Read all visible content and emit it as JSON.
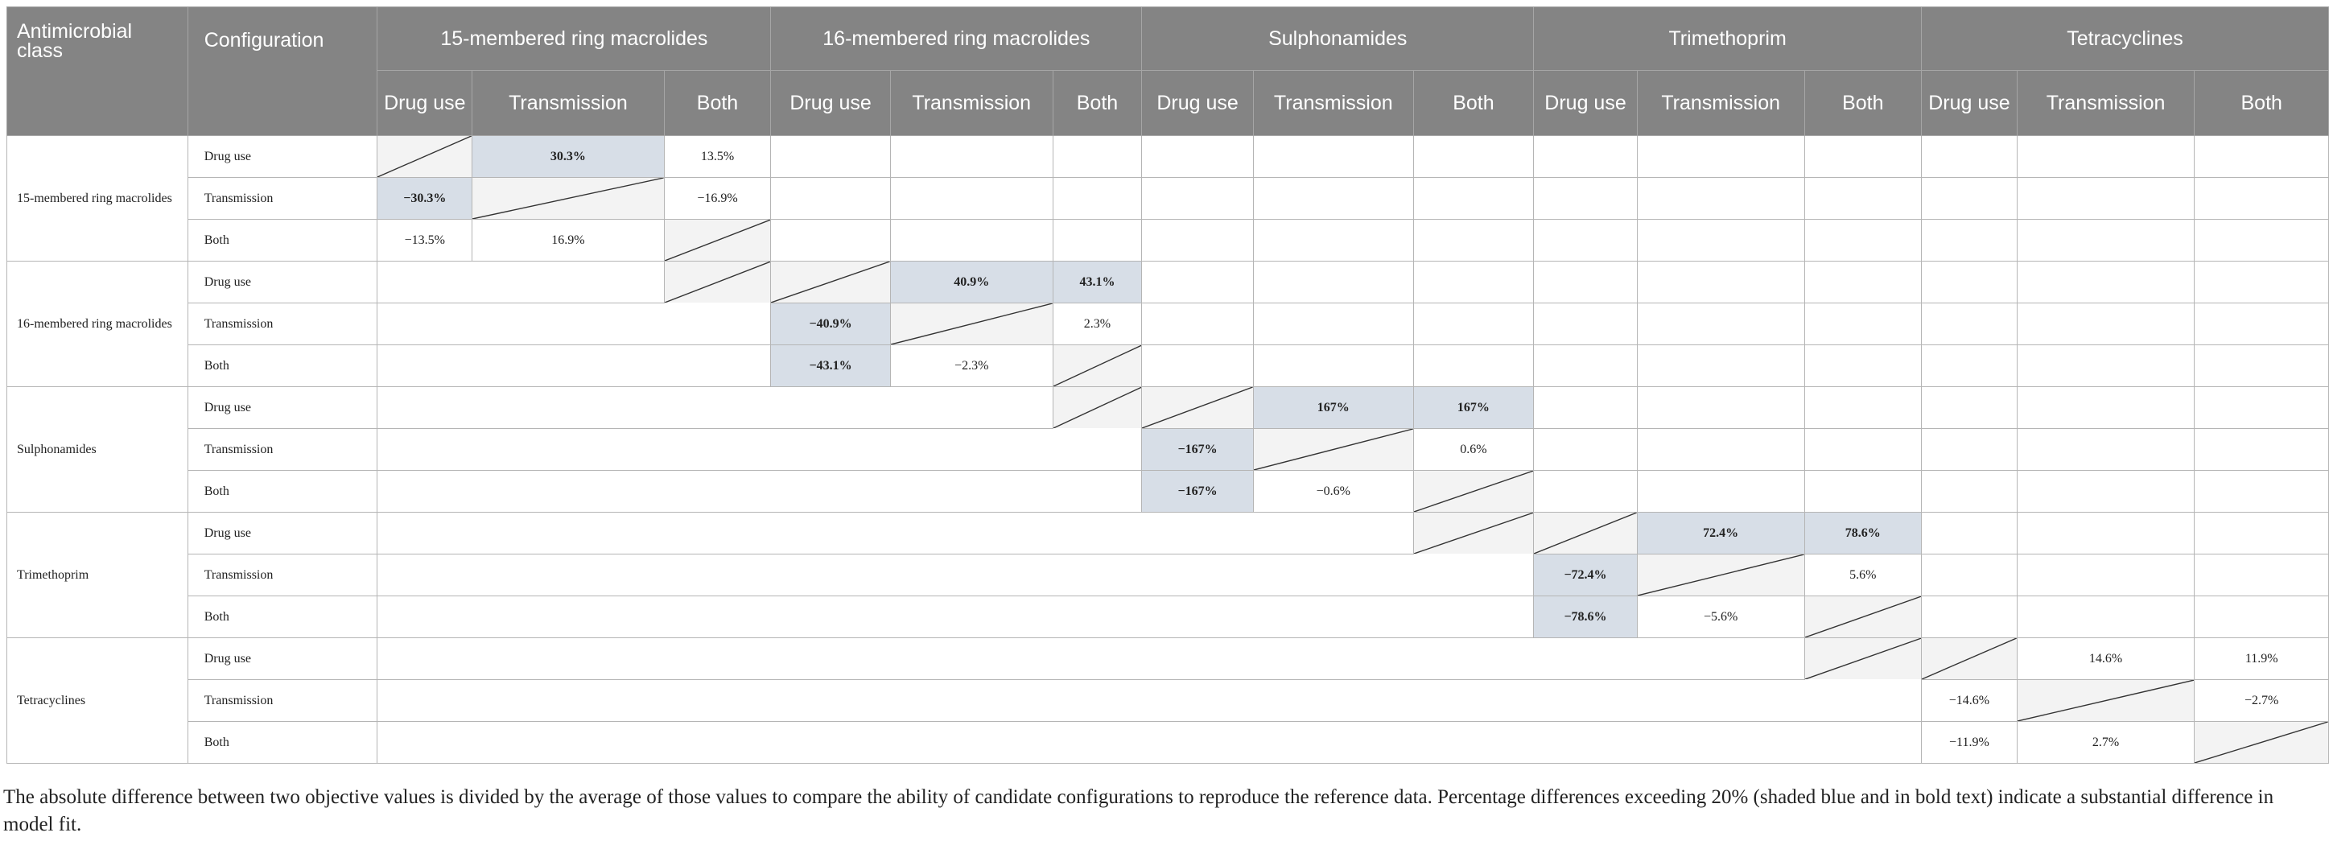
{
  "header": {
    "class_label": "Antimicrobial class",
    "config_label": "Configuration",
    "groups": [
      "15-membered ring macrolides",
      "16-membered ring macrolides",
      "Sulphonamides",
      "Trimethoprim",
      "Tetracyclines"
    ],
    "subcols": [
      "Drug use",
      "Transmission",
      "Both"
    ]
  },
  "classes": [
    "15-membered ring macrolides",
    "16-membered ring macrolides",
    "Sulphonamides",
    "Trimethoprim",
    "Tetracyclines"
  ],
  "configs": [
    "Drug use",
    "Transmission",
    "Both"
  ],
  "blocks": [
    [
      [
        "",
        "30.3%",
        "13.5%"
      ],
      [
        "−30.3%",
        "",
        "−16.9%"
      ],
      [
        "−13.5%",
        "16.9%",
        ""
      ]
    ],
    [
      [
        "",
        "40.9%",
        "43.1%"
      ],
      [
        "−40.9%",
        "",
        "2.3%"
      ],
      [
        "−43.1%",
        "−2.3%",
        ""
      ]
    ],
    [
      [
        "",
        "167%",
        "167%"
      ],
      [
        "−167%",
        "",
        "0.6%"
      ],
      [
        "−167%",
        "−0.6%",
        ""
      ]
    ],
    [
      [
        "",
        "72.4%",
        "78.6%"
      ],
      [
        "−72.4%",
        "",
        "5.6%"
      ],
      [
        "−78.6%",
        "−5.6%",
        ""
      ]
    ],
    [
      [
        "",
        "14.6%",
        "11.9%"
      ],
      [
        "−14.6%",
        "",
        "−2.7%"
      ],
      [
        "−11.9%",
        "2.7%",
        ""
      ]
    ]
  ],
  "significant": [
    [
      [
        false,
        true,
        false
      ],
      [
        true,
        false,
        false
      ],
      [
        false,
        false,
        false
      ]
    ],
    [
      [
        false,
        true,
        true
      ],
      [
        true,
        false,
        false
      ],
      [
        true,
        false,
        false
      ]
    ],
    [
      [
        false,
        true,
        true
      ],
      [
        true,
        false,
        false
      ],
      [
        true,
        false,
        false
      ]
    ],
    [
      [
        false,
        true,
        true
      ],
      [
        true,
        false,
        false
      ],
      [
        true,
        false,
        false
      ]
    ],
    [
      [
        false,
        false,
        false
      ],
      [
        false,
        false,
        false
      ],
      [
        false,
        false,
        false
      ]
    ]
  ],
  "colors": {
    "header_bg": "#848484",
    "significant_bg": "#d7dee7",
    "diagonal_bg": "#f3f3f3",
    "grid": "#b5b5b5"
  },
  "caption": "The absolute difference between two objective values is divided by the average of those values to compare the ability of candidate configurations to reproduce the reference data. Percentage differences exceeding 20% (shaded blue and in bold text) indicate a substantial difference in model fit."
}
